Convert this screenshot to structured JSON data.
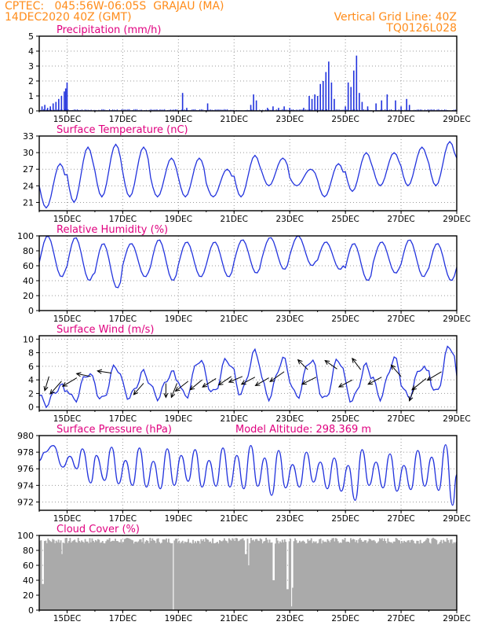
{
  "header": {
    "station_code": "CPTEC:",
    "coordinates": "045:56W-06:05S",
    "location": "GRAJAU (MA)",
    "run_time": "14DEC2020 40Z (GMT)",
    "grid_note": "Vertical Grid Line: 40Z",
    "product_code": "TQ0126L028"
  },
  "colors": {
    "header": "#ff8c1a",
    "panel_title": "#e0007f",
    "series_line": "#2233dd",
    "cloud_fill": "#aaaaaa",
    "grid": "#999999"
  },
  "x_tick_labels": [
    "15DEC",
    "17DEC",
    "19DEC",
    "21DEC",
    "23DEC",
    "25DEC",
    "27DEC",
    "29DEC"
  ],
  "chart_data": [
    {
      "id": "precip",
      "type": "bar",
      "title": "Precipitation (mm/h)",
      "x_unit": "days since 14DEC2020 00Z",
      "xlim": [
        0,
        15
      ],
      "ylim": [
        0,
        5
      ],
      "yticks": [
        0,
        1,
        2,
        3,
        4,
        5
      ],
      "grid": true,
      "events": [
        [
          0.1,
          0.3
        ],
        [
          0.2,
          0.4
        ],
        [
          0.3,
          0.2
        ],
        [
          0.4,
          0.3
        ],
        [
          0.5,
          0.5
        ],
        [
          0.6,
          0.6
        ],
        [
          0.7,
          0.8
        ],
        [
          0.8,
          1.0
        ],
        [
          0.9,
          1.3
        ],
        [
          0.95,
          1.5
        ],
        [
          1.0,
          1.9
        ],
        [
          5.15,
          1.2
        ],
        [
          5.3,
          0.2
        ],
        [
          6.05,
          0.5
        ],
        [
          7.6,
          0.4
        ],
        [
          7.7,
          1.1
        ],
        [
          7.8,
          0.7
        ],
        [
          8.2,
          0.2
        ],
        [
          8.4,
          0.3
        ],
        [
          8.6,
          0.2
        ],
        [
          8.8,
          0.3
        ],
        [
          9.0,
          0.2
        ],
        [
          9.5,
          0.2
        ],
        [
          9.7,
          1.0
        ],
        [
          9.8,
          0.8
        ],
        [
          9.9,
          1.1
        ],
        [
          10.0,
          1.0
        ],
        [
          10.1,
          1.8
        ],
        [
          10.2,
          2.0
        ],
        [
          10.3,
          2.6
        ],
        [
          10.4,
          3.3
        ],
        [
          10.5,
          1.9
        ],
        [
          10.6,
          0.8
        ],
        [
          11.0,
          0.3
        ],
        [
          11.1,
          1.9
        ],
        [
          11.2,
          1.6
        ],
        [
          11.3,
          2.7
        ],
        [
          11.4,
          3.7
        ],
        [
          11.5,
          1.2
        ],
        [
          11.6,
          0.6
        ],
        [
          11.8,
          0.3
        ],
        [
          12.1,
          0.5
        ],
        [
          12.3,
          0.7
        ],
        [
          12.5,
          1.1
        ],
        [
          12.8,
          0.7
        ],
        [
          13.0,
          0.3
        ],
        [
          13.2,
          0.8
        ],
        [
          13.3,
          0.4
        ]
      ]
    },
    {
      "id": "temp",
      "type": "line",
      "title": "Surface Temperature (nC)",
      "xlim": [
        0,
        15
      ],
      "ylim": [
        19.5,
        33
      ],
      "yticks": [
        21,
        24,
        27,
        30,
        33
      ],
      "grid": true,
      "daily_minmax": [
        [
          20,
          28
        ],
        [
          21,
          31
        ],
        [
          22,
          31.5
        ],
        [
          22,
          31
        ],
        [
          22,
          29
        ],
        [
          22,
          29
        ],
        [
          22,
          27
        ],
        [
          22,
          29.5
        ],
        [
          24,
          29
        ],
        [
          24,
          27
        ],
        [
          22,
          28
        ],
        [
          23,
          30
        ],
        [
          24,
          30
        ],
        [
          24,
          31
        ],
        [
          24,
          32
        ],
        [
          26,
          32
        ]
      ]
    },
    {
      "id": "rh",
      "type": "line",
      "title": "Relative Humidity (%)",
      "xlim": [
        0,
        15
      ],
      "ylim": [
        0,
        100
      ],
      "yticks": [
        0,
        20,
        40,
        60,
        80,
        100
      ],
      "grid": true,
      "daily_minmax": [
        [
          45,
          100
        ],
        [
          40,
          98
        ],
        [
          30,
          90
        ],
        [
          45,
          90
        ],
        [
          40,
          95
        ],
        [
          45,
          92
        ],
        [
          45,
          92
        ],
        [
          50,
          95
        ],
        [
          55,
          98
        ],
        [
          60,
          100
        ],
        [
          55,
          92
        ],
        [
          40,
          90
        ],
        [
          50,
          92
        ],
        [
          45,
          95
        ],
        [
          40,
          90
        ],
        [
          40,
          92
        ]
      ]
    },
    {
      "id": "wind",
      "type": "line",
      "title": "Surface Wind (m/s)",
      "xlim": [
        0,
        15
      ],
      "ylim": [
        -0.5,
        10.5
      ],
      "yticks": [
        0,
        2,
        4,
        6,
        8,
        10
      ],
      "grid": true,
      "daily_minmax": [
        [
          0.5,
          3
        ],
        [
          1,
          5
        ],
        [
          1,
          6
        ],
        [
          1.5,
          5
        ],
        [
          1.5,
          5
        ],
        [
          1.5,
          7
        ],
        [
          2,
          7
        ],
        [
          2,
          8
        ],
        [
          1.5,
          7
        ],
        [
          1.5,
          7
        ],
        [
          1,
          7
        ],
        [
          1,
          6
        ],
        [
          1.5,
          7
        ],
        [
          1.5,
          6
        ],
        [
          2,
          9
        ],
        [
          2,
          6
        ]
      ],
      "arrows": [
        {
          "day": 0.35,
          "speed": 4.5,
          "u": -0.3,
          "v": -1.0
        },
        {
          "day": 0.8,
          "speed": 3.8,
          "u": -0.8,
          "v": -0.9
        },
        {
          "day": 1.35,
          "speed": 4.3,
          "u": -1.0,
          "v": -0.6
        },
        {
          "day": 1.85,
          "speed": 4.5,
          "u": -1.0,
          "v": 0.2
        },
        {
          "day": 2.6,
          "speed": 5.0,
          "u": -1.0,
          "v": 0.15
        },
        {
          "day": 3.75,
          "speed": 3.5,
          "u": -0.7,
          "v": -0.8
        },
        {
          "day": 4.55,
          "speed": 3.5,
          "u": 0.0,
          "v": -1.0
        },
        {
          "day": 4.95,
          "speed": 3.5,
          "u": -0.4,
          "v": -1.0
        },
        {
          "day": 5.35,
          "speed": 3.8,
          "u": -0.9,
          "v": -0.7
        },
        {
          "day": 5.85,
          "speed": 4.0,
          "u": -0.85,
          "v": -0.7
        },
        {
          "day": 6.35,
          "speed": 4.2,
          "u": -0.95,
          "v": -0.6
        },
        {
          "day": 6.9,
          "speed": 4.5,
          "u": -0.9,
          "v": -0.6
        },
        {
          "day": 7.3,
          "speed": 4.5,
          "u": -0.95,
          "v": -0.4
        },
        {
          "day": 7.75,
          "speed": 4.4,
          "u": -0.95,
          "v": -0.5
        },
        {
          "day": 8.25,
          "speed": 4.3,
          "u": -0.95,
          "v": -0.55
        },
        {
          "day": 8.8,
          "speed": 5.2,
          "u": -1.0,
          "v": -0.7
        },
        {
          "day": 9.65,
          "speed": 5.5,
          "u": -0.7,
          "v": 0.7
        },
        {
          "day": 9.95,
          "speed": 4.4,
          "u": -1.0,
          "v": -0.5
        },
        {
          "day": 10.7,
          "speed": 5.6,
          "u": -0.85,
          "v": 0.6
        },
        {
          "day": 11.25,
          "speed": 4.0,
          "u": -0.95,
          "v": -0.5
        },
        {
          "day": 11.55,
          "speed": 5.5,
          "u": -0.6,
          "v": 0.8
        },
        {
          "day": 12.3,
          "speed": 4.4,
          "u": -0.95,
          "v": -0.5
        },
        {
          "day": 13.0,
          "speed": 4.5,
          "u": -0.7,
          "v": 0.8
        },
        {
          "day": 13.5,
          "speed": 3.0,
          "u": -0.4,
          "v": -1.0
        },
        {
          "day": 13.9,
          "speed": 4.2,
          "u": -1.0,
          "v": -0.8
        },
        {
          "day": 14.45,
          "speed": 5.2,
          "u": -1.0,
          "v": -0.6
        }
      ]
    },
    {
      "id": "pressure",
      "type": "line",
      "title": "Surface Pressure (hPa)",
      "subtitle": "Model Altitude: 298.369 m",
      "xlim": [
        0,
        15
      ],
      "ylim": [
        971,
        980
      ],
      "yticks": [
        972,
        974,
        976,
        978,
        980
      ],
      "grid": true,
      "semi_diurnal": [
        {
          "day": 0.0,
          "v": 977.0
        },
        {
          "day": 0.2,
          "v": 978.0
        },
        {
          "day": 0.5,
          "v": 978.8
        },
        {
          "day": 0.85,
          "v": 976.2
        },
        {
          "day": 1.1,
          "v": 977.5
        },
        {
          "day": 1.35,
          "v": 976.0
        },
        {
          "day": 1.55,
          "v": 978.4
        },
        {
          "day": 1.85,
          "v": 974.3
        },
        {
          "day": 2.05,
          "v": 977.6
        },
        {
          "day": 2.35,
          "v": 974.6
        },
        {
          "day": 2.6,
          "v": 978.6
        },
        {
          "day": 2.85,
          "v": 974.2
        },
        {
          "day": 3.1,
          "v": 977.0
        },
        {
          "day": 3.35,
          "v": 974.0
        },
        {
          "day": 3.6,
          "v": 978.5
        },
        {
          "day": 3.85,
          "v": 973.8
        },
        {
          "day": 4.1,
          "v": 976.9
        },
        {
          "day": 4.35,
          "v": 973.6
        },
        {
          "day": 4.6,
          "v": 978.4
        },
        {
          "day": 4.85,
          "v": 974.0
        },
        {
          "day": 5.1,
          "v": 977.6
        },
        {
          "day": 5.35,
          "v": 974.5
        },
        {
          "day": 5.6,
          "v": 978.3
        },
        {
          "day": 5.85,
          "v": 973.8
        },
        {
          "day": 6.1,
          "v": 977.0
        },
        {
          "day": 6.35,
          "v": 973.9
        },
        {
          "day": 6.6,
          "v": 978.5
        },
        {
          "day": 6.85,
          "v": 973.8
        },
        {
          "day": 7.1,
          "v": 977.6
        },
        {
          "day": 7.35,
          "v": 973.6
        },
        {
          "day": 7.6,
          "v": 978.8
        },
        {
          "day": 7.85,
          "v": 973.9
        },
        {
          "day": 8.1,
          "v": 977.3
        },
        {
          "day": 8.35,
          "v": 972.8
        },
        {
          "day": 8.6,
          "v": 978.2
        },
        {
          "day": 8.85,
          "v": 973.7
        },
        {
          "day": 9.1,
          "v": 976.5
        },
        {
          "day": 9.35,
          "v": 973.8
        },
        {
          "day": 9.6,
          "v": 978.0
        },
        {
          "day": 9.85,
          "v": 974.4
        },
        {
          "day": 10.1,
          "v": 976.8
        },
        {
          "day": 10.35,
          "v": 973.6
        },
        {
          "day": 10.6,
          "v": 977.3
        },
        {
          "day": 10.85,
          "v": 973.3
        },
        {
          "day": 11.1,
          "v": 976.4
        },
        {
          "day": 11.35,
          "v": 972.2
        },
        {
          "day": 11.6,
          "v": 978.3
        },
        {
          "day": 11.85,
          "v": 974.0
        },
        {
          "day": 12.1,
          "v": 976.8
        },
        {
          "day": 12.35,
          "v": 973.7
        },
        {
          "day": 12.6,
          "v": 977.8
        },
        {
          "day": 12.85,
          "v": 973.3
        },
        {
          "day": 13.1,
          "v": 976.4
        },
        {
          "day": 13.35,
          "v": 973.5
        },
        {
          "day": 13.6,
          "v": 978.2
        },
        {
          "day": 13.85,
          "v": 973.9
        },
        {
          "day": 14.1,
          "v": 977.4
        },
        {
          "day": 14.35,
          "v": 973.4
        },
        {
          "day": 14.6,
          "v": 978.9
        },
        {
          "day": 14.85,
          "v": 971.6
        },
        {
          "day": 15.0,
          "v": 975.3
        }
      ]
    },
    {
      "id": "cloud",
      "type": "area",
      "title": "Cloud Cover (%)",
      "xlim": [
        0,
        15
      ],
      "ylim": [
        0,
        100
      ],
      "yticks": [
        0,
        20,
        40,
        60,
        80,
        100
      ],
      "grid": true,
      "base_cover": 93,
      "dips": [
        [
          0.1,
          35
        ],
        [
          0.8,
          75
        ],
        [
          4.8,
          0
        ],
        [
          7.4,
          75
        ],
        [
          7.5,
          60
        ],
        [
          8.4,
          40
        ],
        [
          8.9,
          28
        ],
        [
          9.05,
          5
        ],
        [
          9.1,
          30
        ],
        [
          14.3,
          88
        ]
      ]
    }
  ]
}
